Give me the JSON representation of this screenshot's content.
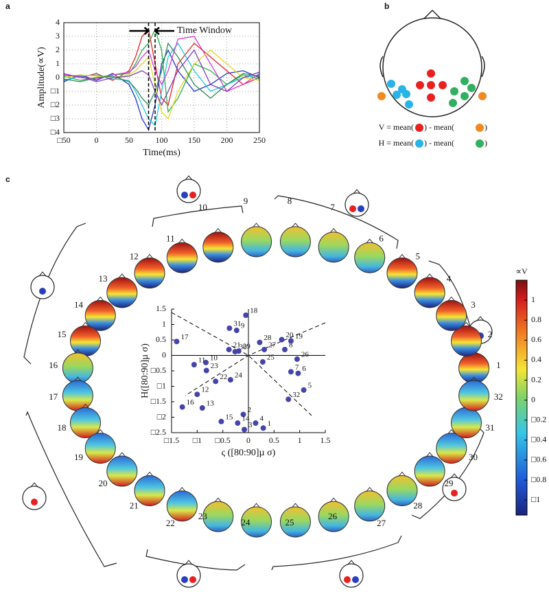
{
  "panel_labels": [
    "a",
    "b",
    "c"
  ],
  "formulas": [
    [
      "V = mean(",
      ") - mean(",
      ")"
    ],
    [
      "H = mean(",
      ") - mean(",
      ")"
    ]
  ],
  "chart_data": [
    {
      "type": "line",
      "x_label": "Time(ms)",
      "y_label": "Amplitude(∝V)",
      "annotation": "Time Window",
      "time_window": [
        80,
        90
      ],
      "x": [
        -50,
        -25,
        0,
        25,
        50,
        60,
        70,
        80,
        90,
        100,
        110,
        125,
        150,
        175,
        200,
        225,
        250
      ],
      "xlim": [
        -50,
        250
      ],
      "xticks": [
        {
          "value": -50,
          "label": "□50"
        },
        0,
        50,
        100,
        150,
        200,
        250
      ],
      "ylim": [
        -4,
        4
      ],
      "yticks": [
        {
          "value": -4,
          "label": "□4"
        },
        {
          "value": -3,
          "label": "□3"
        },
        {
          "value": -2,
          "label": "□2"
        },
        {
          "value": -1,
          "label": "□1"
        },
        0,
        1,
        2,
        3,
        4
      ],
      "grid": true,
      "series": [
        {
          "color": "#e8231f",
          "values": [
            0.2,
            0,
            0.3,
            -0.2,
            0.5,
            1.5,
            3,
            3.5,
            1,
            -1.5,
            -2,
            1,
            2.5,
            1.5,
            0.5,
            -0.5,
            0
          ]
        },
        {
          "color": "#2233cc",
          "values": [
            -0.3,
            0.2,
            -0.2,
            0.3,
            -0.5,
            -1.5,
            -3,
            -3.8,
            -2,
            1,
            2,
            0.5,
            -1,
            -0.5,
            0.3,
            0.5,
            0
          ]
        },
        {
          "color": "#22b14c",
          "values": [
            0.1,
            -0.2,
            0,
            0.2,
            0.3,
            1,
            2,
            2.5,
            3.5,
            2,
            -2.5,
            -1.5,
            1,
            0.5,
            -0.5,
            0.2,
            -0.1
          ]
        },
        {
          "color": "#22c8e0",
          "values": [
            -0.2,
            0.1,
            0.2,
            -0.1,
            -0.2,
            -1,
            -2,
            -3,
            -3.5,
            -1,
            1.5,
            2.5,
            0.5,
            -1,
            -0.5,
            0,
            0.2
          ]
        },
        {
          "color": "#d63ad6",
          "values": [
            0.3,
            0,
            -0.1,
            0.2,
            0.4,
            0.8,
            1.5,
            2,
            0.5,
            -0.5,
            0.5,
            2.8,
            3,
            1,
            -1,
            -0.5,
            0.3
          ]
        },
        {
          "color": "#e6d620",
          "values": [
            0,
            0.2,
            0.1,
            0,
            0.2,
            0.5,
            1,
            1.5,
            -0.5,
            -2.5,
            -3,
            -1,
            1,
            2,
            1,
            0,
            -0.2
          ]
        },
        {
          "color": "#2e8b57",
          "values": [
            -0.1,
            -0.3,
            0,
            0.1,
            -0.3,
            -0.8,
            -1.5,
            -2,
            -1,
            0.5,
            2.5,
            1.5,
            -0.5,
            -1.5,
            -0.5,
            0.3,
            0.1
          ]
        },
        {
          "color": "#7a3db8",
          "values": [
            0.2,
            0.1,
            -0.3,
            0,
            0.1,
            0.3,
            0.5,
            0.2,
            -1,
            -2,
            -1,
            0.5,
            2,
            -0.5,
            -1,
            0,
            0.4
          ]
        }
      ]
    },
    {
      "type": "scatter",
      "x_label": "ς ([80:90]µ σ)",
      "y_label": "H([80:90]µ σ)",
      "color": "#4444aa",
      "point_labels": [
        "1",
        "2",
        "3",
        "4",
        "5",
        "6",
        "7",
        "8",
        "9",
        "10",
        "11",
        "12",
        "13",
        "14",
        "15",
        "16",
        "17",
        "18",
        "19",
        "20",
        "21",
        "22",
        "23",
        "24",
        "25",
        "26",
        "27",
        "28",
        "29",
        "30",
        "31",
        "32"
      ],
      "x": [
        0.29,
        -0.1,
        -0.08,
        0.14,
        1.08,
        0.97,
        0.83,
        0.71,
        -0.23,
        -0.83,
        -1.06,
        -1.0,
        -0.9,
        -0.21,
        -0.53,
        -1.29,
        -1.4,
        -0.05,
        0.83,
        0.65,
        -0.38,
        -0.64,
        -0.82,
        -0.35,
        0.28,
        0.95,
        0.31,
        0.22,
        -0.19,
        -0.26,
        -0.37,
        0.78
      ],
      "values": [
        -2.35,
        -1.91,
        -2.4,
        -2.19,
        -1.12,
        -0.58,
        -0.53,
        0.19,
        0.81,
        -0.23,
        -0.3,
        -1.26,
        -1.7,
        -2.19,
        -2.14,
        -1.67,
        0.45,
        1.3,
        0.47,
        0.51,
        0.19,
        -0.84,
        -0.49,
        -0.79,
        -0.21,
        -0.12,
        0.19,
        0.42,
        0.14,
        0.12,
        0.88,
        -1.42
      ],
      "xlim": [
        -1.5,
        1.5
      ],
      "xticks": [
        {
          "value": -1.5,
          "label": "□1.5"
        },
        {
          "value": -1,
          "label": "□1"
        },
        {
          "value": -0.5,
          "label": "□0.5"
        },
        0,
        0.5,
        1,
        1.5
      ],
      "ylim": [
        -2.5,
        1.5
      ],
      "yticks": [
        {
          "value": -2.5,
          "label": "□2.5"
        },
        {
          "value": -2,
          "label": "□2"
        },
        {
          "value": -1.5,
          "label": "□1.5"
        },
        {
          "value": -1,
          "label": "□1"
        },
        {
          "value": -0.5,
          "label": "□0.5"
        },
        0,
        0.5,
        1,
        1.5
      ]
    },
    {
      "type": "colorbar",
      "title": "∝V",
      "ylim": [
        -1.15,
        1.2
      ],
      "yticks": [
        1,
        0.8,
        0.6,
        0.4,
        0.2,
        0,
        {
          "value": -0.2,
          "label": "□0.2"
        },
        {
          "value": -0.4,
          "label": "□0.4"
        },
        {
          "value": -0.6,
          "label": "□0.6"
        },
        {
          "value": -0.8,
          "label": "□0.8"
        },
        {
          "value": -1,
          "label": "□1"
        }
      ]
    }
  ]
}
